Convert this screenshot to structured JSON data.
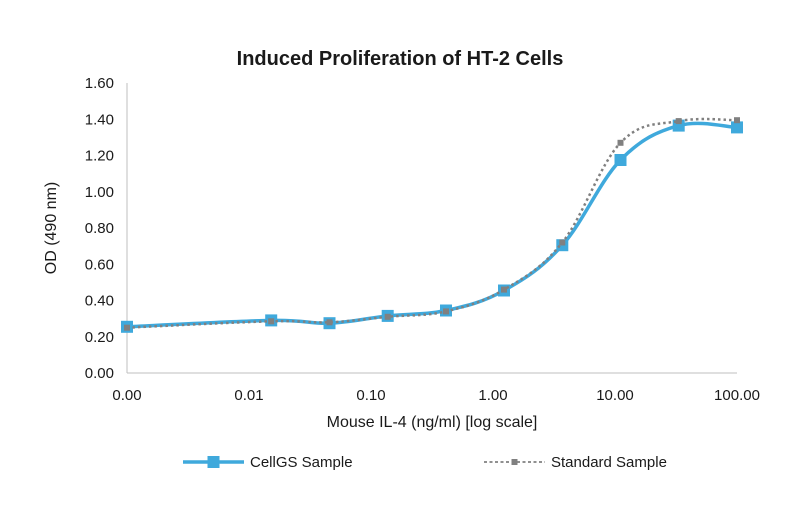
{
  "chart_data": {
    "type": "line",
    "title": "Induced Proliferation of HT-2 Cells",
    "xlabel": "Mouse IL-4 (ng/ml) [log scale]",
    "ylabel": "OD (490 nm)",
    "x_scale": "log",
    "x_tick_labels": [
      "0.00",
      "0.01",
      "0.10",
      "1.00",
      "10.00",
      "100.00"
    ],
    "y_tick_labels": [
      "0.00",
      "0.20",
      "0.40",
      "0.60",
      "0.80",
      "1.00",
      "1.20",
      "1.40",
      "1.60"
    ],
    "ylim": [
      0,
      1.6
    ],
    "grid": false,
    "legend_position": "bottom",
    "x": [
      0.001,
      0.0152,
      0.0457,
      0.137,
      0.412,
      1.23,
      3.7,
      11.1,
      33.3,
      100
    ],
    "series": [
      {
        "name": "CellGS Sample",
        "color": "#3fa9dc",
        "style": "solid",
        "marker": "square",
        "values": [
          0.255,
          0.29,
          0.275,
          0.315,
          0.345,
          0.455,
          0.705,
          1.175,
          1.365,
          1.355
        ]
      },
      {
        "name": "Standard Sample",
        "color": "#808080",
        "style": "dotted",
        "marker": "square",
        "values": [
          0.25,
          0.285,
          0.28,
          0.31,
          0.34,
          0.46,
          0.72,
          1.27,
          1.39,
          1.395
        ]
      }
    ]
  }
}
